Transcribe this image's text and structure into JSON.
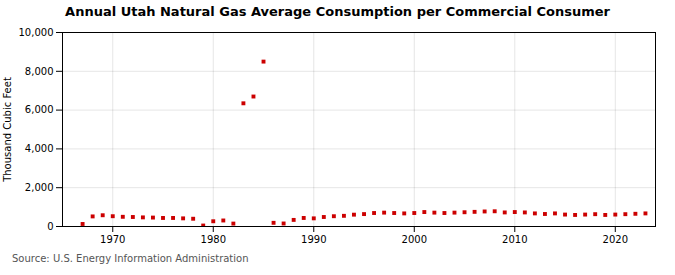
{
  "chart_data": {
    "type": "scatter",
    "title": "Annual Utah Natural Gas Average Consumption per Commercial Consumer",
    "ylabel": "Thousand Cubic Feet",
    "annotations": [
      "Source: U.S. Energy Information Administration"
    ],
    "x": [
      1967,
      1968,
      1969,
      1970,
      1971,
      1972,
      1973,
      1974,
      1975,
      1976,
      1977,
      1978,
      1979,
      1980,
      1981,
      1982,
      1983,
      1984,
      1985,
      1986,
      1987,
      1988,
      1989,
      1990,
      1991,
      1992,
      1993,
      1994,
      1995,
      1996,
      1997,
      1998,
      1999,
      2000,
      2001,
      2002,
      2003,
      2004,
      2005,
      2006,
      2007,
      2008,
      2009,
      2010,
      2011,
      2012,
      2013,
      2014,
      2015,
      2016,
      2017,
      2018,
      2019,
      2020,
      2021,
      2022,
      2023
    ],
    "values": [
      130,
      520,
      580,
      530,
      500,
      490,
      470,
      460,
      440,
      440,
      420,
      400,
      50,
      270,
      310,
      150,
      6350,
      6700,
      8500,
      190,
      155,
      340,
      440,
      420,
      490,
      530,
      550,
      610,
      640,
      695,
      715,
      695,
      675,
      695,
      745,
      715,
      695,
      715,
      735,
      755,
      775,
      785,
      725,
      745,
      725,
      675,
      645,
      675,
      615,
      595,
      615,
      635,
      595,
      615,
      635,
      655,
      675
    ],
    "color": "#cc0000",
    "marker": "square",
    "xlim": [
      1965,
      2024
    ],
    "xticks": [
      1970,
      1980,
      1990,
      2000,
      2010,
      2020
    ],
    "ylim": [
      0,
      10000
    ],
    "yticks": [
      0,
      {
        "value": 2000,
        "label": "2,000"
      },
      {
        "value": 4000,
        "label": "4,000"
      },
      {
        "value": 6000,
        "label": "6,000"
      },
      {
        "value": 8000,
        "label": "8,000"
      },
      {
        "value": 10000,
        "label": "10,000"
      }
    ],
    "grid": true
  }
}
